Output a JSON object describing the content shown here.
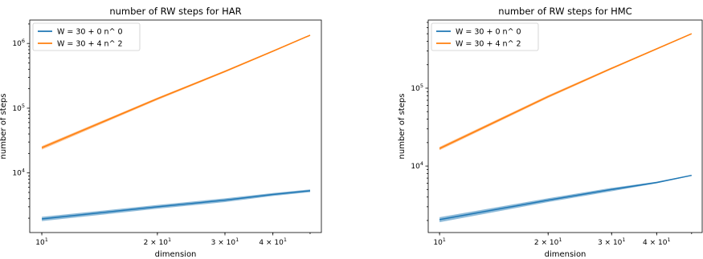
{
  "chart_data": [
    {
      "type": "line",
      "title": "number of RW steps for HAR",
      "xlabel": "dimension",
      "ylabel": "number of steps",
      "xscale": "log",
      "yscale": "log",
      "xlim": [
        9.3,
        53.5
      ],
      "ylim": [
        1200,
        2300000
      ],
      "x_ticks": [
        {
          "value": 10,
          "base": "10",
          "exp": "1",
          "coef": ""
        },
        {
          "value": 20,
          "base": "10",
          "exp": "1",
          "coef": "2 × "
        },
        {
          "value": 30,
          "base": "10",
          "exp": "1",
          "coef": "3 × "
        },
        {
          "value": 40,
          "base": "10",
          "exp": "1",
          "coef": "4 × "
        }
      ],
      "y_ticks": [
        {
          "value": 10000,
          "base": "10",
          "exp": "4"
        },
        {
          "value": 100000,
          "base": "10",
          "exp": "5"
        },
        {
          "value": 1000000,
          "base": "10",
          "exp": "6"
        }
      ],
      "legend": "top-left",
      "grid": false,
      "series": [
        {
          "name": "W = 30 + 0 n^ 0",
          "color": "#1f77b4",
          "x": [
            10,
            20,
            30,
            40,
            50
          ],
          "y": [
            1950,
            3000,
            3800,
            4650,
            5300
          ],
          "lower": [
            1800,
            2800,
            3550,
            4400,
            5050
          ],
          "upper": [
            2100,
            3200,
            4050,
            4900,
            5550
          ]
        },
        {
          "name": "W = 30 + 4 n^ 2",
          "color": "#ff7f0e",
          "x": [
            10,
            20,
            30,
            40,
            50
          ],
          "y": [
            24500,
            140000,
            370000,
            760000,
            1340000
          ],
          "lower": [
            23000,
            134000,
            358000,
            740000,
            1310000
          ],
          "upper": [
            26000,
            146000,
            382000,
            780000,
            1370000
          ]
        }
      ]
    },
    {
      "type": "line",
      "title": "number of RW steps for HMC",
      "xlabel": "dimension",
      "ylabel": "number of steps",
      "xscale": "log",
      "yscale": "log",
      "xlim": [
        9.3,
        53.5
      ],
      "ylim": [
        1400,
        750000
      ],
      "x_ticks": [
        {
          "value": 10,
          "base": "10",
          "exp": "1",
          "coef": ""
        },
        {
          "value": 20,
          "base": "10",
          "exp": "1",
          "coef": "2 × "
        },
        {
          "value": 30,
          "base": "10",
          "exp": "1",
          "coef": "3 × "
        },
        {
          "value": 40,
          "base": "10",
          "exp": "1",
          "coef": "4 × "
        }
      ],
      "y_ticks": [
        {
          "value": 10000,
          "base": "10",
          "exp": "4"
        },
        {
          "value": 100000,
          "base": "10",
          "exp": "5"
        }
      ],
      "legend": "top-left",
      "grid": false,
      "series": [
        {
          "name": "W = 30 + 0 n^ 0",
          "color": "#1f77b4",
          "x": [
            10,
            20,
            30,
            40,
            50
          ],
          "y": [
            2050,
            3650,
            5000,
            6150,
            7600
          ],
          "lower": [
            1900,
            3450,
            4750,
            6000,
            7500
          ],
          "upper": [
            2200,
            3850,
            5250,
            6300,
            7700
          ]
        },
        {
          "name": "W = 30 + 4 n^ 2",
          "color": "#ff7f0e",
          "x": [
            10,
            20,
            30,
            40,
            50
          ],
          "y": [
            16800,
            78000,
            180000,
            320000,
            500000
          ],
          "lower": [
            16000,
            75000,
            175000,
            313000,
            492000
          ],
          "upper": [
            17600,
            81000,
            185000,
            327000,
            508000
          ]
        }
      ]
    }
  ]
}
